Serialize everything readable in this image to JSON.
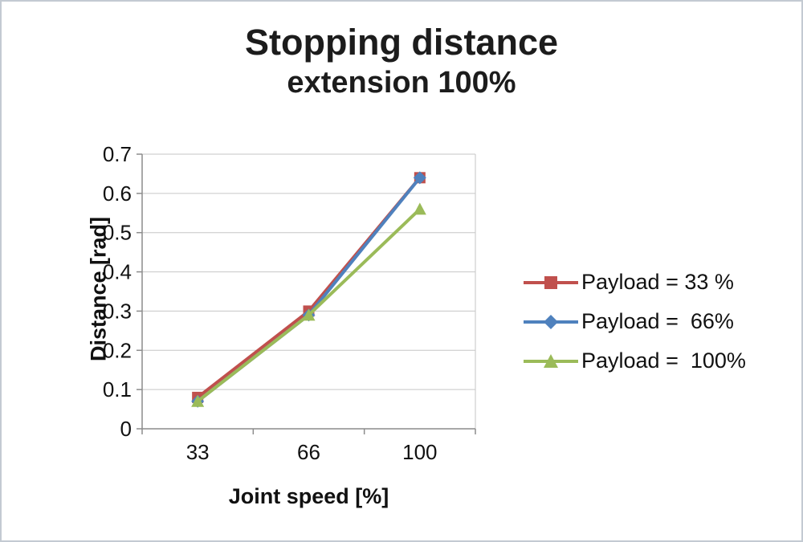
{
  "chart_data": {
    "type": "line",
    "title": "Stopping distance",
    "subtitle": "extension 100%",
    "xlabel": "Joint speed [%]",
    "ylabel": "Distance [rad]",
    "categories": [
      "33",
      "66",
      "100"
    ],
    "series": [
      {
        "name": "Payload = 33 %",
        "color": "#C0504D",
        "marker": "square",
        "values": [
          0.08,
          0.3,
          0.64
        ]
      },
      {
        "name": "Payload =  66%",
        "color": "#4F81BD",
        "marker": "diamond",
        "values": [
          0.07,
          0.29,
          0.64
        ]
      },
      {
        "name": "Payload =  100%",
        "color": "#9BBB59",
        "marker": "triangle",
        "values": [
          0.07,
          0.29,
          0.56
        ]
      }
    ],
    "ylim": [
      0,
      0.7
    ],
    "ytick_step": 0.1,
    "grid": true,
    "legend_position": "right",
    "gridline_color": "#c6c6c6",
    "axis_color": "#8c8c8c"
  }
}
